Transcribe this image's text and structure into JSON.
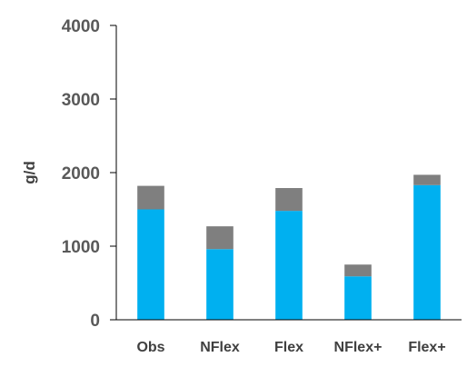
{
  "chart_data": {
    "type": "bar",
    "stacked": true,
    "title": "",
    "xlabel": "",
    "ylabel": "g/d",
    "ylim": [
      0,
      4000
    ],
    "yticks": [
      0,
      1000,
      2000,
      3000,
      4000
    ],
    "grid": false,
    "legend": "none",
    "categories": [
      "Obs",
      "NFlex",
      "Flex",
      "NFlex+",
      "Flex+"
    ],
    "series": [
      {
        "values": [
          1500,
          960,
          1480,
          590,
          1830
        ],
        "color": "#00b0f0"
      },
      {
        "values": [
          320,
          310,
          310,
          160,
          140
        ],
        "color": "#7f7f7f"
      }
    ],
    "axis_color": "#000000"
  }
}
